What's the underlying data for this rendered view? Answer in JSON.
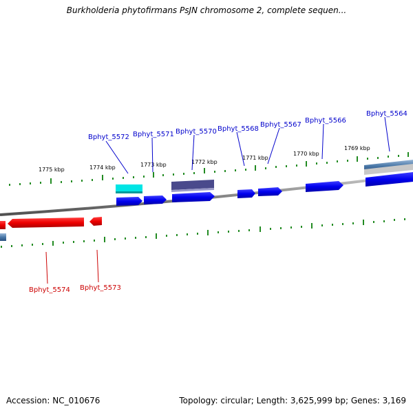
{
  "title": "Burkholderia phytofirmans PsJN chromosome 2, complete sequen...",
  "footer": {
    "accession": "Accession: NC_010676",
    "stats": "Topology: circular; Length: 3,625,999 bp; Genes: 3,169"
  },
  "scale_labels": [
    "1775 kbp",
    "1774 kbp",
    "1773 kbp",
    "1772 kbp",
    "1771 kbp",
    "1770 kbp",
    "1769 kbp"
  ],
  "genes_top": [
    "Bphyt_5572",
    "Bphyt_5571",
    "Bphyt_5570",
    "Bphyt_5568",
    "Bphyt_5567",
    "Bphyt_5566",
    "Bphyt_5564"
  ],
  "genes_bottom": [
    "Bphyt_5574",
    "Bphyt_5573"
  ],
  "colors": {
    "forward_gene": "#0000ee",
    "reverse_gene": "#ee0000",
    "leader_top": "#0000cc",
    "leader_bottom": "#cc0000",
    "tick": "#228b22",
    "cyan_feature": "#00e5e5",
    "slate_feature": "#4a4a8c",
    "backbone": "#808080"
  }
}
